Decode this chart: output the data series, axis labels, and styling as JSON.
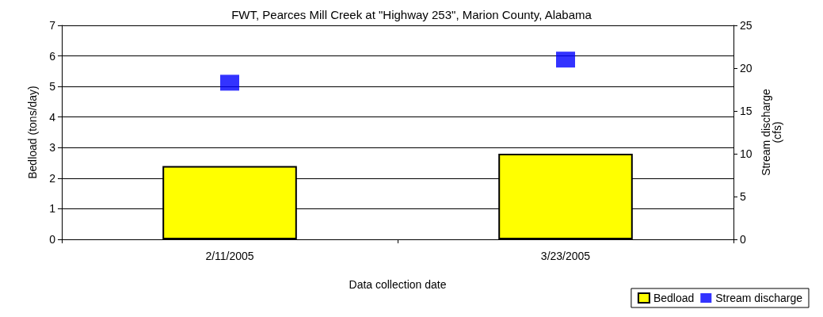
{
  "chart_data": {
    "type": "bar",
    "title": "FWT, Pearces Mill Creek at \"Highway 253\", Marion County, Alabama",
    "xlabel": "Data collection date",
    "ylabel": "Bedload (tons/day)",
    "y2label": "Stream discharge\n(cfs)",
    "categories": [
      "2/11/2005",
      "3/23/2005"
    ],
    "series": [
      {
        "name": "Bedload",
        "color": "#ffff00",
        "values": [
          2.4,
          2.8
        ]
      },
      {
        "name": "Stream discharge",
        "type": "scatter",
        "axis": "y2",
        "color": "#0000ff",
        "marker": "square",
        "values": [
          18.3,
          21.0
        ]
      }
    ],
    "ylim": [
      0,
      7
    ],
    "yticks": [
      0,
      1,
      2,
      3,
      4,
      5,
      6,
      7
    ],
    "y2lim": [
      0,
      25
    ],
    "y2ticks": [
      0,
      5,
      10,
      15,
      20,
      25
    ],
    "grid": "y",
    "legend": "bottom right"
  }
}
